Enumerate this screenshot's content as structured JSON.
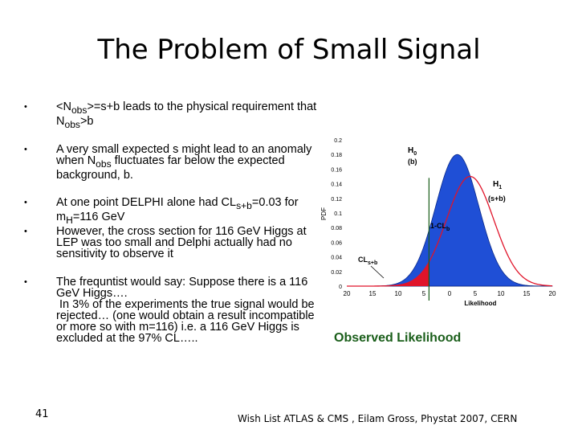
{
  "slide": {
    "title": "The Problem of Small Signal",
    "slide_number": "41",
    "footer": "Wish List ATLAS & CMS , Eilam Gross, Phystat 2007, CERN"
  },
  "bullets": [
    {
      "html": "&lt;N<sub>obs</sub>&gt;=s+b leads to the physical requirement that N<sub>obs</sub>&gt;b"
    },
    {
      "html": "A very small expected s might lead to an anomaly when N<sub>obs</sub> fluctuates far below the expected background, b."
    },
    {
      "html": "At one point DELPHI alone had CL<sub>s+b</sub>=0.03 for m<sub>H</sub>=116 GeV"
    },
    {
      "html": "However, the cross section for 116 GeV Higgs at LEP was too small and Delphi actually had no sensitivity to observe it"
    },
    {
      "html": "The frequntist would say: Suppose there is a 116 GeV Higgs….<br>&nbsp;In 3% of the experiments the true signal would be rejected… (one would obtain a result incompatible or more so with m=116) i.e. a 116 GeV Higgs is excluded at the 97% CL….."
    }
  ],
  "chart_data": {
    "type": "area",
    "xlabel": "Likelihood",
    "ylabel": "PDF",
    "x_ticks": [
      "20",
      "15",
      "10",
      "5",
      "0",
      "5",
      "10",
      "15",
      "20"
    ],
    "y_ticks": [
      "0.2",
      "0.18",
      "0.16",
      "0.14",
      "0.12",
      "0.1",
      "0.08",
      "0.06",
      "0.04",
      "0.02",
      "0"
    ],
    "ylim": [
      0,
      0.2
    ],
    "series": [
      {
        "name": "H0 (b)",
        "color": "#1f4fd6",
        "mean": 1.5,
        "sigma": 4.2,
        "amp": 0.18
      },
      {
        "name": "H1 (s+b)",
        "color": "#e0142a",
        "mean": 4.0,
        "sigma": 4.6,
        "amp": 0.15
      }
    ],
    "observed_x": -4,
    "labels": {
      "h0": "H",
      "h0_sub": "0",
      "h0_b": "(b)",
      "h1": "H",
      "h1_sub": "1",
      "h1_sb": "(s+b)",
      "one_minus_clb": "1-CL",
      "one_minus_clb_sub": "b",
      "clsb": "CL",
      "clsb_sub": "s+b"
    },
    "observed_label": "Observed Likelihood"
  }
}
